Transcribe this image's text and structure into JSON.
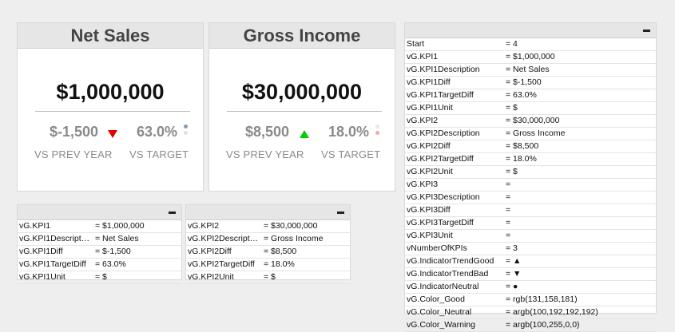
{
  "kpi1": {
    "title": "Net Sales",
    "value": "$1,000,000",
    "diff": "$-1,500",
    "pct": "63.0%",
    "vs_prev": "VS PREV YEAR",
    "vs_target": "VS TARGET",
    "arrow": "triangle-down-icon",
    "arrow_color": "#e00000",
    "dot_color": "#839eb5"
  },
  "kpi2": {
    "title": "Gross Income",
    "value": "$30,000,000",
    "diff": "$8,500",
    "pct": "18.0%",
    "vs_prev": "VS PREV YEAR",
    "vs_target": "VS TARGET",
    "arrow": "triangle-up-icon",
    "arrow_color": "#00cc00",
    "dot_color": "#f4a8a8"
  },
  "table1": [
    {
      "k": "vG.KPI1",
      "v": "= $1,000,000"
    },
    {
      "k": "vG.KPI1Descript…",
      "v": "= Net Sales"
    },
    {
      "k": "vG.KPI1Diff",
      "v": "= $-1,500"
    },
    {
      "k": "vG.KPI1TargetDiff",
      "v": "= 63.0%"
    },
    {
      "k": "vG.KPI1Unit",
      "v": "= $"
    }
  ],
  "table2": [
    {
      "k": "vG.KPI2",
      "v": "= $30,000,000"
    },
    {
      "k": "vG.KPI2Descript…",
      "v": "= Gross Income"
    },
    {
      "k": "vG.KPI2Diff",
      "v": "= $8,500"
    },
    {
      "k": "vG.KPI2TargetDiff",
      "v": "= 18.0%"
    },
    {
      "k": "vG.KPI2Unit",
      "v": "= $"
    }
  ],
  "vars": [
    {
      "k": "Start",
      "v": "= 4"
    },
    {
      "k": "vG.KPI1",
      "v": "= $1,000,000"
    },
    {
      "k": "vG.KPI1Description",
      "v": "= Net Sales"
    },
    {
      "k": "vG.KPI1Diff",
      "v": "= $-1,500"
    },
    {
      "k": "vG.KPI1TargetDiff",
      "v": "= 63.0%"
    },
    {
      "k": "vG.KPI1Unit",
      "v": "= $"
    },
    {
      "k": "vG.KPI2",
      "v": "= $30,000,000"
    },
    {
      "k": "vG.KPI2Description",
      "v": "= Gross Income"
    },
    {
      "k": "vG.KPI2Diff",
      "v": "= $8,500"
    },
    {
      "k": "vG.KPI2TargetDiff",
      "v": "= 18.0%"
    },
    {
      "k": "vG.KPI2Unit",
      "v": "= $"
    },
    {
      "k": "vG.KPI3",
      "v": "="
    },
    {
      "k": "vG.KPI3Description",
      "v": "="
    },
    {
      "k": "vG.KPI3Diff",
      "v": "="
    },
    {
      "k": "vG.KPI3TargetDiff",
      "v": "="
    },
    {
      "k": "vG.KPI3Unit",
      "v": "="
    },
    {
      "k": "vNumberOfKPIs",
      "v": "= 3"
    },
    {
      "k": "vG.IndicatorTrendGood",
      "v": "= ▲"
    },
    {
      "k": "vG.IndicatorTrendBad",
      "v": "= ▼"
    },
    {
      "k": "vG.IndicatorNeutral",
      "v": "= ●"
    },
    {
      "k": "vG.Color_Good",
      "v": "= rgb(131,158,181)"
    },
    {
      "k": "vG.Color_Neutral",
      "v": "= argb(100,192,192,192)"
    },
    {
      "k": "vG.Color_Warning",
      "v": "= argb(100,255,0,0)"
    }
  ]
}
